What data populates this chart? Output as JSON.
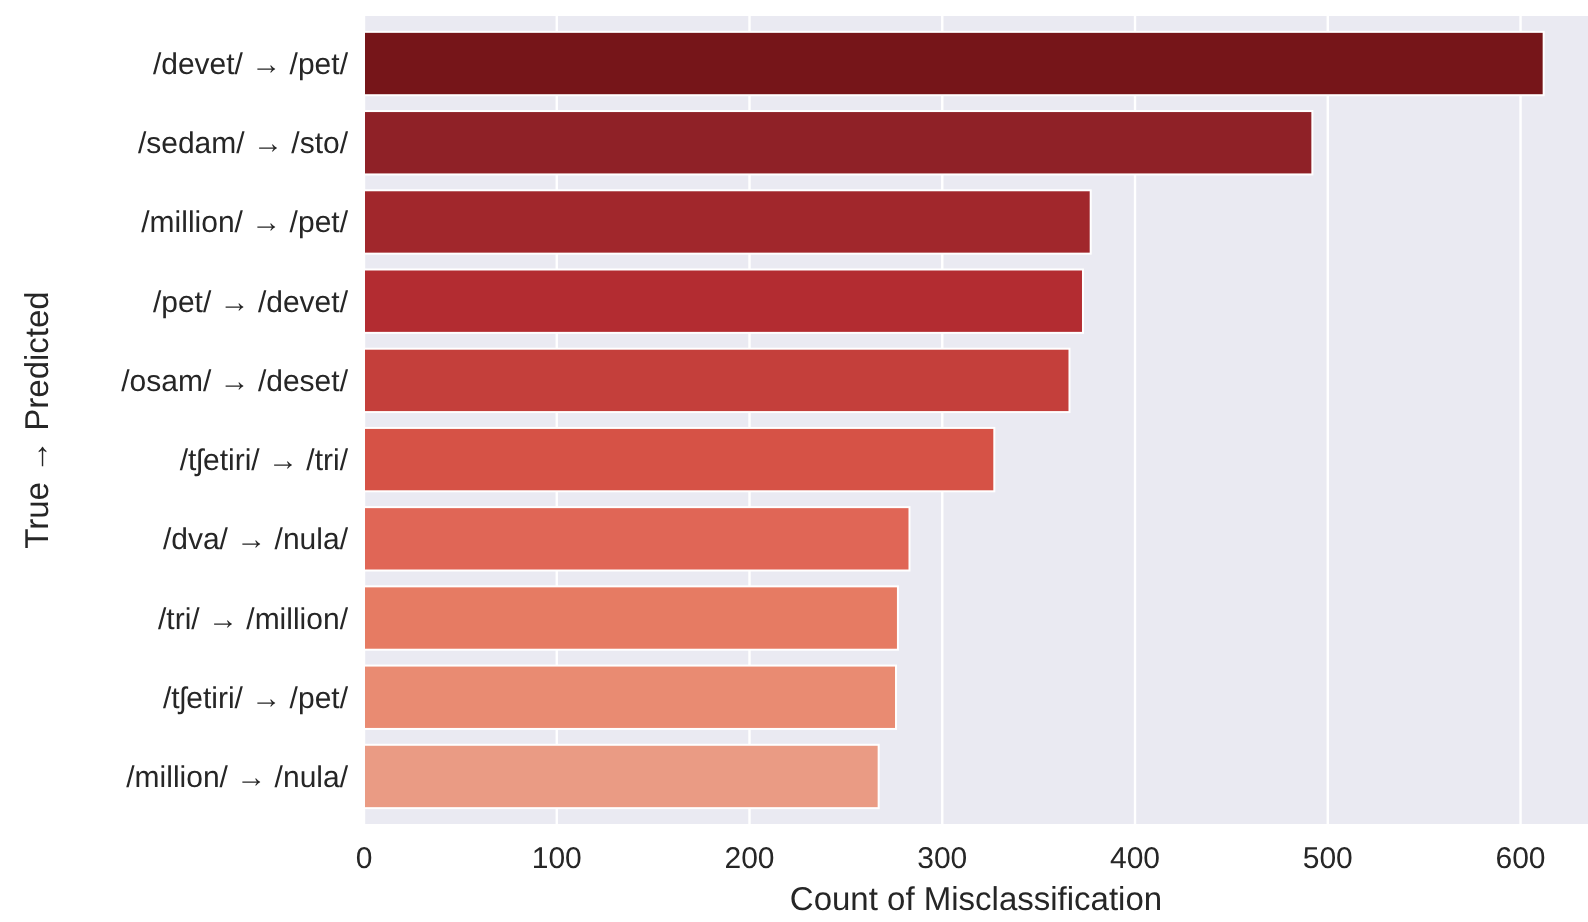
{
  "chart_data": {
    "type": "bar",
    "orientation": "horizontal",
    "xlabel": "Count of Misclassification",
    "ylabel": "True → Predicted",
    "categories": [
      "/devet/ → /pet/",
      "/sedam/ → /sto/",
      "/million/ → /pet/",
      "/pet/ → /devet/",
      "/osam/ → /deset/",
      "/tʃetiri/ → /tri/",
      "/dva/ → /nula/",
      "/tri/ → /million/",
      "/tʃetiri/ → /pet/",
      "/million/ → /nula/"
    ],
    "values": [
      612,
      492,
      377,
      373,
      366,
      327,
      283,
      277,
      276,
      267
    ],
    "colors": [
      "#761519",
      "#8f2127",
      "#a1272c",
      "#b32c31",
      "#c43f3b",
      "#d65246",
      "#e06656",
      "#e67b63",
      "#e98b72",
      "#ea9b84"
    ],
    "xlim": [
      0,
      635
    ],
    "xticks": [
      0,
      100,
      200,
      300,
      400,
      500,
      600
    ],
    "grid": "x"
  }
}
